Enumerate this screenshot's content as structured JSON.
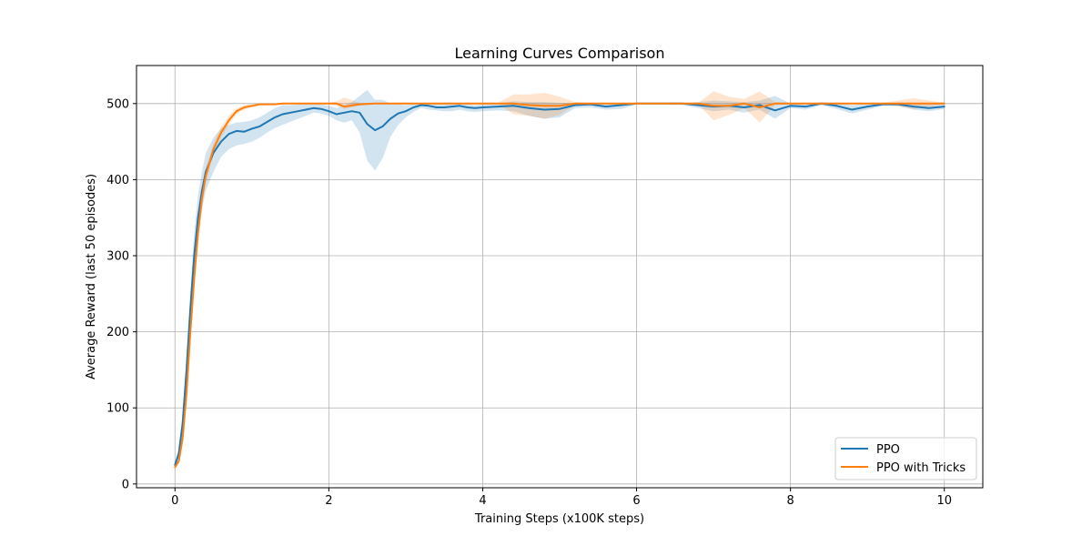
{
  "chart_data": {
    "type": "line",
    "title": "Learning Curves Comparison",
    "xlabel": "Training Steps (x100K steps)",
    "ylabel": "Average Reward (last 50 episodes)",
    "xlim": [
      -0.5,
      10.5
    ],
    "ylim": [
      -5,
      550
    ],
    "xticks": [
      0,
      2,
      4,
      6,
      8,
      10
    ],
    "yticks": [
      0,
      100,
      200,
      300,
      400,
      500
    ],
    "grid": true,
    "legend_position": "lower-right",
    "series": [
      {
        "name": "PPO",
        "color": "#1f77b4",
        "band_color": "#1f77b4",
        "band_opacity": 0.2,
        "x": [
          0,
          0.05,
          0.1,
          0.15,
          0.2,
          0.25,
          0.3,
          0.35,
          0.4,
          0.5,
          0.6,
          0.7,
          0.8,
          0.9,
          1.0,
          1.1,
          1.2,
          1.3,
          1.4,
          1.5,
          1.6,
          1.7,
          1.8,
          1.9,
          2.0,
          2.1,
          2.2,
          2.3,
          2.4,
          2.5,
          2.6,
          2.7,
          2.8,
          2.9,
          3.0,
          3.1,
          3.2,
          3.3,
          3.4,
          3.5,
          3.6,
          3.7,
          3.8,
          3.9,
          4.0,
          4.2,
          4.4,
          4.6,
          4.8,
          5.0,
          5.2,
          5.4,
          5.6,
          5.8,
          6.0,
          6.2,
          6.4,
          6.6,
          6.8,
          7.0,
          7.2,
          7.4,
          7.6,
          7.8,
          8.0,
          8.2,
          8.4,
          8.6,
          8.8,
          9.0,
          9.2,
          9.4,
          9.6,
          9.8,
          10.0
        ],
        "y": [
          25,
          40,
          80,
          150,
          230,
          300,
          350,
          385,
          410,
          435,
          450,
          460,
          464,
          463,
          467,
          470,
          476,
          482,
          486,
          488,
          490,
          492,
          494,
          493,
          490,
          486,
          488,
          490,
          488,
          473,
          465,
          470,
          480,
          487,
          490,
          495,
          498,
          497,
          495,
          495,
          496,
          497,
          495,
          494,
          495,
          496,
          497,
          494,
          492,
          493,
          498,
          499,
          496,
          498,
          500,
          500,
          500,
          500,
          498,
          496,
          497,
          495,
          498,
          491,
          497,
          496,
          500,
          497,
          492,
          496,
          499,
          499,
          496,
          494,
          496
        ],
        "lower": [
          20,
          34,
          70,
          130,
          205,
          270,
          320,
          360,
          385,
          410,
          430,
          440,
          445,
          447,
          450,
          455,
          462,
          468,
          472,
          476,
          480,
          484,
          488,
          487,
          484,
          478,
          475,
          478,
          462,
          425,
          412,
          428,
          456,
          472,
          482,
          489,
          494,
          492,
          491,
          490,
          490,
          492,
          490,
          489,
          490,
          491,
          490,
          484,
          480,
          482,
          494,
          495,
          492,
          493,
          499,
          499,
          499,
          498,
          494,
          490,
          492,
          488,
          492,
          480,
          494,
          492,
          498,
          493,
          487,
          492,
          497,
          497,
          492,
          490,
          493
        ],
        "upper": [
          30,
          46,
          90,
          170,
          255,
          330,
          380,
          410,
          435,
          455,
          468,
          472,
          475,
          476,
          478,
          482,
          488,
          494,
          498,
          498,
          499,
          500,
          500,
          499,
          497,
          494,
          498,
          502,
          510,
          518,
          505,
          505,
          500,
          499,
          498,
          500,
          501,
          500,
          499,
          499,
          500,
          500,
          499,
          498,
          499,
          500,
          503,
          502,
          502,
          501,
          501,
          501,
          500,
          501,
          501,
          501,
          501,
          501,
          502,
          504,
          503,
          502,
          504,
          510,
          500,
          500,
          502,
          501,
          498,
          500,
          501,
          501,
          501,
          500,
          500
        ]
      },
      {
        "name": "PPO with Tricks",
        "color": "#ff7f0e",
        "band_color": "#ff7f0e",
        "band_opacity": 0.2,
        "x": [
          0,
          0.05,
          0.1,
          0.15,
          0.2,
          0.25,
          0.3,
          0.35,
          0.4,
          0.5,
          0.6,
          0.7,
          0.8,
          0.9,
          1.0,
          1.1,
          1.2,
          1.3,
          1.4,
          1.5,
          1.6,
          1.8,
          2.0,
          2.1,
          2.2,
          2.4,
          2.6,
          2.8,
          3.0,
          3.5,
          4.0,
          4.2,
          4.4,
          4.6,
          4.8,
          5.0,
          5.2,
          5.4,
          5.6,
          5.8,
          6.0,
          6.4,
          6.8,
          7.0,
          7.2,
          7.4,
          7.6,
          7.8,
          8.0,
          8.4,
          8.8,
          9.2,
          9.6,
          10.0
        ],
        "y": [
          22,
          30,
          60,
          120,
          200,
          270,
          330,
          375,
          405,
          440,
          462,
          478,
          490,
          495,
          497,
          499,
          499,
          499,
          500,
          500,
          500,
          500,
          500,
          500,
          496,
          499,
          500,
          500,
          500,
          500,
          500,
          500,
          500,
          498,
          497,
          497,
          500,
          500,
          500,
          500,
          500,
          500,
          500,
          497,
          497,
          500,
          495,
          500,
          500,
          500,
          500,
          500,
          500,
          500
        ],
        "lower": [
          20,
          27,
          54,
          110,
          185,
          255,
          315,
          362,
          394,
          432,
          455,
          472,
          486,
          492,
          495,
          497,
          498,
          498,
          499,
          499,
          499,
          499,
          499,
          497,
          493,
          497,
          499,
          499,
          499,
          499,
          499,
          499,
          486,
          484,
          480,
          485,
          498,
          499,
          499,
          499,
          499,
          499,
          499,
          478,
          485,
          494,
          475,
          498,
          499,
          499,
          499,
          499,
          493,
          499
        ],
        "upper": [
          24,
          33,
          66,
          130,
          215,
          285,
          345,
          388,
          416,
          448,
          469,
          484,
          494,
          498,
          499,
          500,
          500,
          500,
          501,
          501,
          501,
          501,
          501,
          503,
          508,
          501,
          501,
          501,
          501,
          501,
          501,
          501,
          512,
          512,
          514,
          509,
          502,
          501,
          501,
          501,
          501,
          501,
          501,
          516,
          509,
          506,
          516,
          502,
          501,
          501,
          501,
          501,
          507,
          501
        ]
      }
    ]
  }
}
